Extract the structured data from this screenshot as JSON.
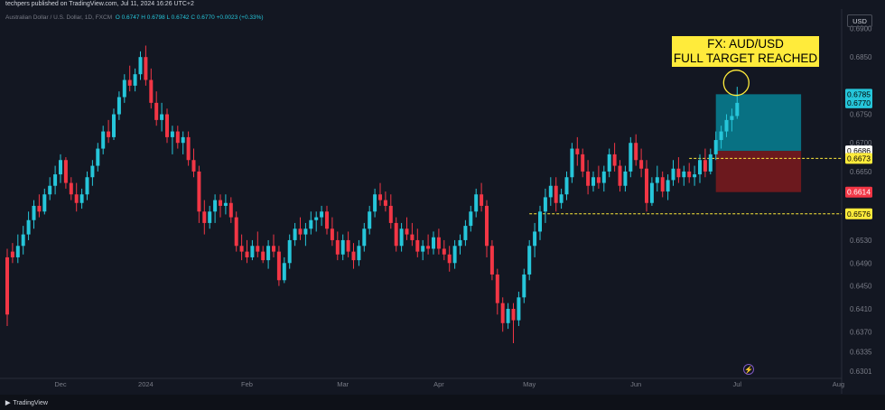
{
  "header": {
    "published_line": "techpers published on TradingView.com, Jul 11, 2024 16:26 UTC+2",
    "symbol_line": "Australian Dollar / U.S. Dollar, 1D, FXCM",
    "ohlc": "O 0.6747  H 0.6798  L 0.6742  C 0.6770  +0.0023 (+0.33%)",
    "currency_button": "USD"
  },
  "annotation": {
    "line1": "FX: AUD/USD",
    "line2": "FULL TARGET REACHED"
  },
  "footer": {
    "logo_text": "TradingView"
  },
  "colors": {
    "background": "#131722",
    "up": "#26c6da",
    "down": "#f23645",
    "annotation_bg": "#ffeb3b",
    "target_zone": "#00bcd4",
    "stop_zone": "#b71c1c"
  },
  "chart_data": {
    "type": "candlestick",
    "symbol": "AUDUSD",
    "timeframe": "1D",
    "ylim": [
      0.629,
      0.6915
    ],
    "y_ticks": [
      0.69,
      0.685,
      0.675,
      0.67,
      0.665,
      0.653,
      0.649,
      0.645,
      0.641,
      0.637,
      0.6335,
      0.6301
    ],
    "x_ticks": [
      {
        "label": "Dec",
        "index": 10
      },
      {
        "label": "2024",
        "index": 26
      },
      {
        "label": "Feb",
        "index": 45
      },
      {
        "label": "Mar",
        "index": 63
      },
      {
        "label": "Apr",
        "index": 81
      },
      {
        "label": "May",
        "index": 98
      },
      {
        "label": "Jun",
        "index": 118
      },
      {
        "label": "Jul",
        "index": 137
      },
      {
        "label": "Aug",
        "index": 156
      }
    ],
    "price_labels": [
      {
        "value": 0.6785,
        "text": "0.6785",
        "bg": "#26c6da",
        "fg": "#000000"
      },
      {
        "value": 0.677,
        "text": "0.6770",
        "bg": "#26c6da",
        "fg": "#000000"
      },
      {
        "value": 0.6686,
        "text": "0.6686",
        "bg": "#ffffff",
        "fg": "#000000"
      },
      {
        "value": 0.6673,
        "text": "0.6673",
        "bg": "#ffeb3b",
        "fg": "#000000"
      },
      {
        "value": 0.6614,
        "text": "0.6614",
        "bg": "#f23645",
        "fg": "#ffffff"
      },
      {
        "value": 0.6576,
        "text": "0.6576",
        "bg": "#ffeb3b",
        "fg": "#000000"
      }
    ],
    "horizontal_lines": [
      {
        "value": 0.6673,
        "from_index": 128,
        "color": "#ffeb3b"
      },
      {
        "value": 0.6576,
        "from_index": 98,
        "color": "#ffeb3b"
      }
    ],
    "position": {
      "entry": 0.6686,
      "target": 0.6785,
      "stop": 0.6614,
      "start_index": 133,
      "end_index": 149
    },
    "candles": [
      [
        0.65,
        0.6515,
        0.638,
        0.64
      ],
      [
        0.651,
        0.6525,
        0.649,
        0.65
      ],
      [
        0.65,
        0.654,
        0.649,
        0.652
      ],
      [
        0.652,
        0.6555,
        0.6505,
        0.654
      ],
      [
        0.654,
        0.658,
        0.653,
        0.6565
      ],
      [
        0.6565,
        0.66,
        0.655,
        0.659
      ],
      [
        0.659,
        0.661,
        0.657,
        0.658
      ],
      [
        0.658,
        0.662,
        0.6575,
        0.661
      ],
      [
        0.661,
        0.664,
        0.66,
        0.6625
      ],
      [
        0.6625,
        0.666,
        0.661,
        0.6645
      ],
      [
        0.6645,
        0.668,
        0.663,
        0.667
      ],
      [
        0.667,
        0.6675,
        0.662,
        0.663
      ],
      [
        0.663,
        0.664,
        0.66,
        0.661
      ],
      [
        0.661,
        0.663,
        0.658,
        0.6595
      ],
      [
        0.6595,
        0.662,
        0.6585,
        0.661
      ],
      [
        0.661,
        0.665,
        0.66,
        0.664
      ],
      [
        0.664,
        0.667,
        0.6625,
        0.666
      ],
      [
        0.666,
        0.67,
        0.665,
        0.669
      ],
      [
        0.669,
        0.673,
        0.668,
        0.672
      ],
      [
        0.672,
        0.674,
        0.67,
        0.671
      ],
      [
        0.671,
        0.676,
        0.6705,
        0.675
      ],
      [
        0.675,
        0.679,
        0.674,
        0.678
      ],
      [
        0.678,
        0.682,
        0.677,
        0.681
      ],
      [
        0.681,
        0.6835,
        0.679,
        0.68
      ],
      [
        0.68,
        0.683,
        0.679,
        0.682
      ],
      [
        0.682,
        0.686,
        0.681,
        0.685
      ],
      [
        0.685,
        0.687,
        0.68,
        0.681
      ],
      [
        0.681,
        0.683,
        0.676,
        0.677
      ],
      [
        0.677,
        0.679,
        0.673,
        0.674
      ],
      [
        0.674,
        0.677,
        0.672,
        0.675
      ],
      [
        0.675,
        0.676,
        0.67,
        0.671
      ],
      [
        0.671,
        0.673,
        0.668,
        0.672
      ],
      [
        0.672,
        0.673,
        0.669,
        0.67
      ],
      [
        0.67,
        0.672,
        0.668,
        0.671
      ],
      [
        0.671,
        0.672,
        0.666,
        0.667
      ],
      [
        0.667,
        0.669,
        0.664,
        0.665
      ],
      [
        0.665,
        0.666,
        0.656,
        0.658
      ],
      [
        0.658,
        0.66,
        0.654,
        0.656
      ],
      [
        0.656,
        0.659,
        0.655,
        0.658
      ],
      [
        0.658,
        0.661,
        0.656,
        0.66
      ],
      [
        0.66,
        0.661,
        0.657,
        0.659
      ],
      [
        0.659,
        0.661,
        0.6575,
        0.6595
      ],
      [
        0.6595,
        0.6605,
        0.656,
        0.657
      ],
      [
        0.657,
        0.658,
        0.651,
        0.652
      ],
      [
        0.652,
        0.654,
        0.6495,
        0.651
      ],
      [
        0.651,
        0.653,
        0.649,
        0.65
      ],
      [
        0.65,
        0.653,
        0.6495,
        0.652
      ],
      [
        0.652,
        0.6545,
        0.65,
        0.651
      ],
      [
        0.651,
        0.652,
        0.649,
        0.6495
      ],
      [
        0.6495,
        0.653,
        0.648,
        0.652
      ],
      [
        0.652,
        0.654,
        0.65,
        0.651
      ],
      [
        0.651,
        0.652,
        0.645,
        0.646
      ],
      [
        0.646,
        0.65,
        0.6455,
        0.649
      ],
      [
        0.649,
        0.654,
        0.648,
        0.653
      ],
      [
        0.653,
        0.656,
        0.652,
        0.655
      ],
      [
        0.655,
        0.657,
        0.653,
        0.654
      ],
      [
        0.654,
        0.656,
        0.652,
        0.655
      ],
      [
        0.655,
        0.658,
        0.654,
        0.6565
      ],
      [
        0.6565,
        0.658,
        0.6545,
        0.657
      ],
      [
        0.657,
        0.659,
        0.6555,
        0.658
      ],
      [
        0.658,
        0.659,
        0.654,
        0.655
      ],
      [
        0.655,
        0.657,
        0.652,
        0.653
      ],
      [
        0.653,
        0.6545,
        0.6495,
        0.6505
      ],
      [
        0.6505,
        0.654,
        0.6495,
        0.653
      ],
      [
        0.653,
        0.6545,
        0.65,
        0.651
      ],
      [
        0.651,
        0.6525,
        0.648,
        0.6495
      ],
      [
        0.6495,
        0.653,
        0.6485,
        0.652
      ],
      [
        0.652,
        0.656,
        0.651,
        0.655
      ],
      [
        0.655,
        0.659,
        0.654,
        0.658
      ],
      [
        0.658,
        0.662,
        0.657,
        0.661
      ],
      [
        0.661,
        0.663,
        0.659,
        0.66
      ],
      [
        0.66,
        0.6615,
        0.658,
        0.659
      ],
      [
        0.659,
        0.661,
        0.655,
        0.656
      ],
      [
        0.656,
        0.657,
        0.651,
        0.652
      ],
      [
        0.652,
        0.656,
        0.651,
        0.655
      ],
      [
        0.655,
        0.657,
        0.653,
        0.654
      ],
      [
        0.654,
        0.656,
        0.652,
        0.653
      ],
      [
        0.653,
        0.655,
        0.65,
        0.651
      ],
      [
        0.651,
        0.653,
        0.6495,
        0.652
      ],
      [
        0.652,
        0.654,
        0.6505,
        0.6515
      ],
      [
        0.6515,
        0.6545,
        0.6505,
        0.6535
      ],
      [
        0.6535,
        0.655,
        0.6505,
        0.6515
      ],
      [
        0.6515,
        0.653,
        0.6495,
        0.6505
      ],
      [
        0.6505,
        0.652,
        0.6475,
        0.649
      ],
      [
        0.649,
        0.653,
        0.648,
        0.652
      ],
      [
        0.652,
        0.654,
        0.6505,
        0.653
      ],
      [
        0.653,
        0.6565,
        0.652,
        0.6555
      ],
      [
        0.6555,
        0.659,
        0.6545,
        0.658
      ],
      [
        0.658,
        0.662,
        0.657,
        0.661
      ],
      [
        0.661,
        0.663,
        0.658,
        0.659
      ],
      [
        0.659,
        0.66,
        0.65,
        0.652
      ],
      [
        0.652,
        0.653,
        0.646,
        0.647
      ],
      [
        0.647,
        0.648,
        0.64,
        0.642
      ],
      [
        0.642,
        0.643,
        0.637,
        0.6385
      ],
      [
        0.6385,
        0.642,
        0.6375,
        0.641
      ],
      [
        0.641,
        0.642,
        0.635,
        0.639
      ],
      [
        0.639,
        0.644,
        0.638,
        0.643
      ],
      [
        0.643,
        0.648,
        0.642,
        0.647
      ],
      [
        0.647,
        0.653,
        0.646,
        0.652
      ],
      [
        0.652,
        0.656,
        0.65,
        0.6545
      ],
      [
        0.6545,
        0.659,
        0.653,
        0.658
      ],
      [
        0.658,
        0.662,
        0.656,
        0.6605
      ],
      [
        0.6605,
        0.664,
        0.659,
        0.6625
      ],
      [
        0.6625,
        0.664,
        0.658,
        0.6595
      ],
      [
        0.6595,
        0.662,
        0.6585,
        0.661
      ],
      [
        0.661,
        0.665,
        0.66,
        0.664
      ],
      [
        0.664,
        0.67,
        0.663,
        0.669
      ],
      [
        0.669,
        0.671,
        0.666,
        0.668
      ],
      [
        0.668,
        0.669,
        0.664,
        0.665
      ],
      [
        0.665,
        0.667,
        0.661,
        0.6625
      ],
      [
        0.6625,
        0.665,
        0.6615,
        0.664
      ],
      [
        0.664,
        0.666,
        0.662,
        0.663
      ],
      [
        0.663,
        0.666,
        0.6615,
        0.665
      ],
      [
        0.665,
        0.669,
        0.664,
        0.668
      ],
      [
        0.668,
        0.67,
        0.665,
        0.666
      ],
      [
        0.666,
        0.667,
        0.6615,
        0.6625
      ],
      [
        0.6625,
        0.666,
        0.6615,
        0.665
      ],
      [
        0.665,
        0.671,
        0.664,
        0.67
      ],
      [
        0.67,
        0.6715,
        0.666,
        0.667
      ],
      [
        0.667,
        0.669,
        0.664,
        0.6655
      ],
      [
        0.6655,
        0.667,
        0.658,
        0.6595
      ],
      [
        0.6595,
        0.664,
        0.659,
        0.663
      ],
      [
        0.663,
        0.666,
        0.6615,
        0.664
      ],
      [
        0.664,
        0.665,
        0.6605,
        0.6615
      ],
      [
        0.6615,
        0.6645,
        0.66,
        0.6635
      ],
      [
        0.6635,
        0.667,
        0.6625,
        0.6655
      ],
      [
        0.6655,
        0.6675,
        0.663,
        0.664
      ],
      [
        0.664,
        0.666,
        0.6625,
        0.665
      ],
      [
        0.665,
        0.6665,
        0.663,
        0.664
      ],
      [
        0.664,
        0.666,
        0.6625,
        0.6645
      ],
      [
        0.6645,
        0.668,
        0.663,
        0.667
      ],
      [
        0.667,
        0.669,
        0.664,
        0.665
      ],
      [
        0.665,
        0.669,
        0.6645,
        0.668
      ],
      [
        0.668,
        0.672,
        0.667,
        0.6705
      ],
      [
        0.6705,
        0.673,
        0.669,
        0.672
      ],
      [
        0.672,
        0.675,
        0.671,
        0.674
      ],
      [
        0.674,
        0.676,
        0.672,
        0.6747
      ],
      [
        0.6747,
        0.6798,
        0.6742,
        0.677
      ]
    ]
  }
}
